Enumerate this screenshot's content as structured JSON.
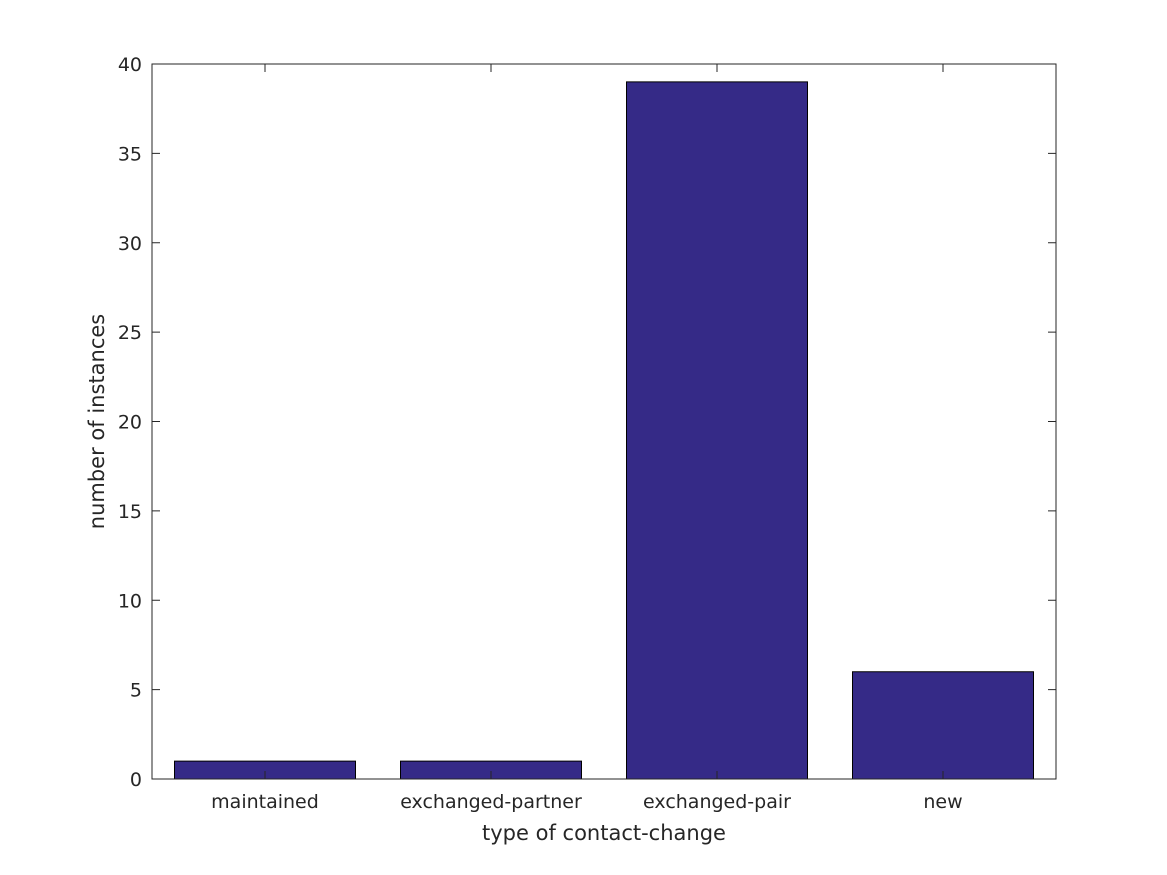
{
  "chart_data": {
    "type": "bar",
    "title": "",
    "xlabel": "type of contact-change",
    "ylabel": "number of instances",
    "categories": [
      "maintained",
      "exchanged-partner",
      "exchanged-pair",
      "new"
    ],
    "values": [
      1,
      1,
      39,
      6
    ],
    "ylim": [
      0,
      40
    ],
    "yticks": [
      0,
      5,
      10,
      15,
      20,
      25,
      30,
      35,
      40
    ],
    "grid": false,
    "legend": "none",
    "bar_color": "#352A87",
    "bar_edge_color": "#000000",
    "axis_color": "#262626"
  }
}
